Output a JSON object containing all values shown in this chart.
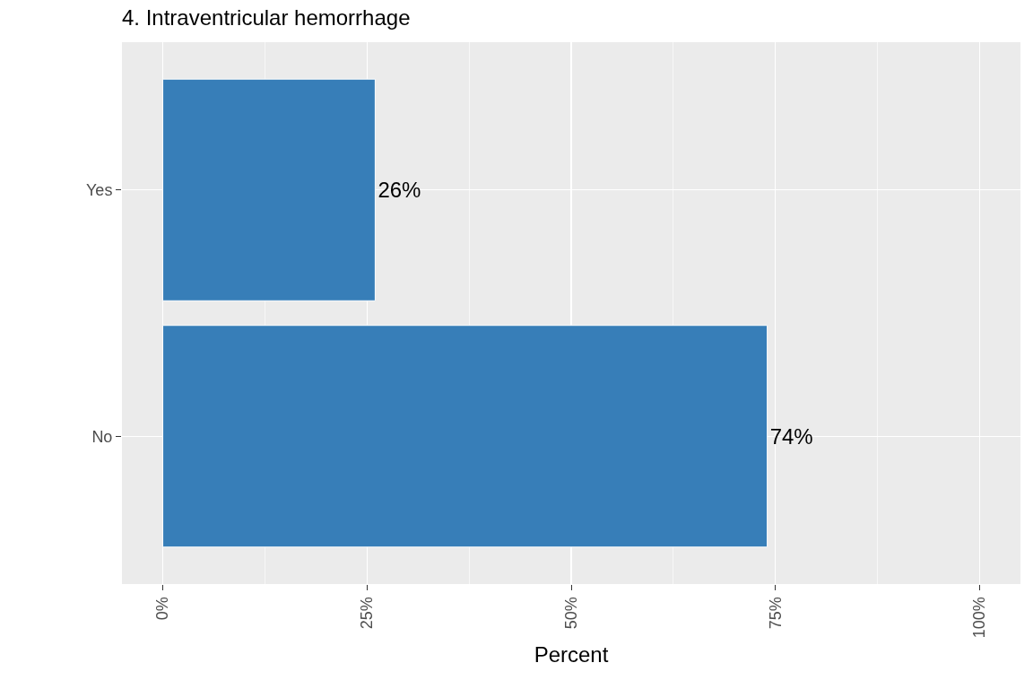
{
  "chart_data": {
    "type": "bar",
    "orientation": "horizontal",
    "title": "4. Intraventricular hemorrhage",
    "xlabel": "Percent",
    "categories": [
      "Yes",
      "No"
    ],
    "values": [
      26,
      74
    ],
    "color": "#377eb8",
    "value_labels": [
      "26%",
      "74%"
    ],
    "xlim": [
      -5,
      105
    ],
    "xticks": [
      {
        "value": 0,
        "label": "0%"
      },
      {
        "value": 25,
        "label": "25%"
      },
      {
        "value": 50,
        "label": "50%"
      },
      {
        "value": 75,
        "label": "75%"
      },
      {
        "value": 100,
        "label": "100%"
      }
    ],
    "grid": true,
    "legend": false
  }
}
